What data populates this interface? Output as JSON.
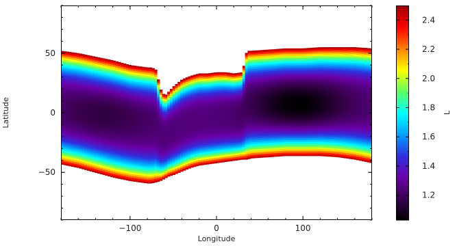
{
  "chart_data": {
    "type": "heatmap",
    "title": "",
    "xlabel": "Longitude",
    "ylabel": "Latitude",
    "xlim": [
      -180,
      180
    ],
    "ylim": [
      -90,
      90
    ],
    "x_ticks": [
      -100,
      0,
      100
    ],
    "x_tick_labels": [
      "−100",
      "0",
      "100"
    ],
    "y_ticks": [
      -50,
      0,
      50
    ],
    "y_tick_labels": [
      "−50",
      "0",
      "50"
    ],
    "colorbar": {
      "label": "L",
      "range": [
        1.03,
        2.5
      ],
      "ticks": [
        1.2,
        1.4,
        1.6,
        1.8,
        2.0,
        2.2,
        2.4
      ],
      "tick_labels": [
        "1.2",
        "1.4",
        "1.6",
        "1.8",
        "2.0",
        "2.2",
        "2.4"
      ],
      "colormap": [
        "#000000",
        "#3a0050",
        "#6a00a8",
        "#3030e0",
        "#00a0ff",
        "#00ffff",
        "#60ff60",
        "#ffff00",
        "#ff8000",
        "#ff0000",
        "#a00000"
      ]
    },
    "boundary": {
      "longitude": [
        -180,
        -160,
        -140,
        -120,
        -100,
        -80,
        -75,
        -70,
        -65,
        -60,
        -55,
        -50,
        -40,
        -30,
        -20,
        -10,
        0,
        10,
        20,
        30,
        35,
        40,
        60,
        80,
        100,
        120,
        140,
        160,
        180
      ],
      "north_lat": [
        52,
        50,
        47,
        44,
        40,
        38,
        38,
        36,
        20,
        14,
        18,
        22,
        28,
        31,
        33,
        33,
        34,
        34,
        33,
        34,
        52,
        52,
        53,
        54,
        54,
        55,
        55,
        55,
        54
      ],
      "south_lat": [
        -43,
        -46,
        -50,
        -54,
        -57,
        -59,
        -59,
        -58,
        -57,
        -55,
        -53,
        -52,
        -49,
        -46,
        -44,
        -43,
        -42,
        -41,
        -40,
        -39,
        -39,
        -38,
        -37,
        -36,
        -36,
        -36,
        -37,
        -39,
        -42
      ]
    },
    "interior_minima": [
      {
        "longitude": 95,
        "latitude": 7,
        "value": 1.03
      },
      {
        "longitude": -130,
        "latitude": 0,
        "value": 1.15
      }
    ],
    "grid": false,
    "legend": "colorbar-right"
  }
}
